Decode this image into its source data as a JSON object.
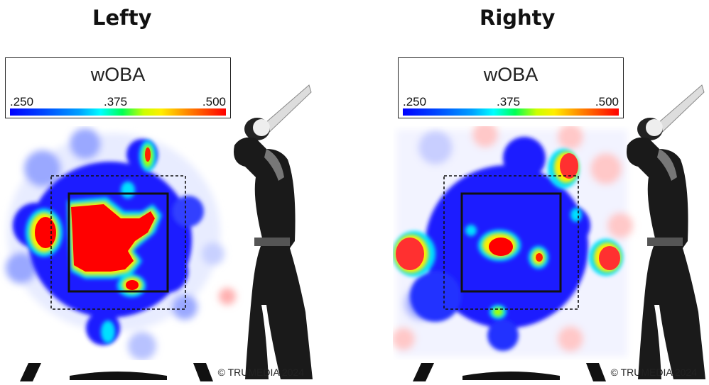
{
  "panels": [
    {
      "title": "Lefty",
      "legend": {
        "metric": "wOBA",
        "ticks": [
          ".250",
          ".375",
          ".500"
        ]
      },
      "credit": "© TRUMEDIA 2024"
    },
    {
      "title": "Righty",
      "legend": {
        "metric": "wOBA",
        "ticks": [
          ".250",
          ".375",
          ".500"
        ]
      },
      "credit": "© TRUMEDIA 2024"
    }
  ],
  "colors": {
    "low": "#0000ff",
    "mid": "#00ff66",
    "high": "#ff0000",
    "zone": "#111111"
  },
  "chart_data": [
    {
      "type": "heatmap",
      "title": "Lefty",
      "metric": "wOBA",
      "color_scale": {
        "min": 0.25,
        "mid": 0.375,
        "max": 0.5
      },
      "hot_regions": [
        "center-left of strike zone",
        "left edge outside zone",
        "lower-right edge of zone",
        "above zone (upper right)"
      ],
      "cold_regions": [
        "right side of zone",
        "surrounding out-of-zone area"
      ]
    },
    {
      "type": "heatmap",
      "title": "Righty",
      "metric": "wOBA",
      "color_scale": {
        "min": 0.25,
        "mid": 0.375,
        "max": 0.5
      },
      "hot_regions": [
        "middle of strike zone",
        "far left outside zone",
        "upper right outside zone",
        "far right outside zone"
      ],
      "cold_regions": [
        "most of strike zone",
        "surrounding area"
      ]
    }
  ]
}
